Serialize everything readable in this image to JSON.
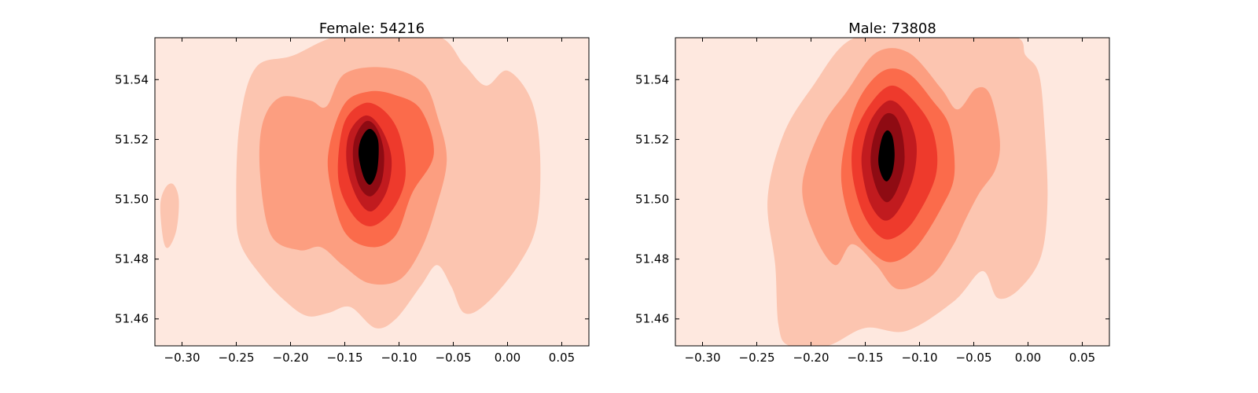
{
  "chart_data": [
    {
      "type": "contour",
      "title": "Female: 54216",
      "xlim": [
        -0.325,
        0.075
      ],
      "ylim": [
        51.451,
        51.554
      ],
      "xticks": [
        -0.3,
        -0.25,
        -0.2,
        -0.15,
        -0.1,
        -0.05,
        0.0,
        0.05
      ],
      "xtick_labels": [
        "−0.30",
        "−0.25",
        "−0.20",
        "−0.15",
        "−0.10",
        "−0.05",
        "0.00",
        "0.05"
      ],
      "yticks": [
        51.46,
        51.48,
        51.5,
        51.52,
        51.54
      ],
      "ytick_labels": [
        "51.46",
        "51.48",
        "51.50",
        "51.52",
        "51.54"
      ],
      "colors": [
        "#fee8df",
        "#fcc5b0",
        "#fc9e80",
        "#fb6b4b",
        "#ee3a2c",
        "#c11b1f",
        "#8e0b13"
      ],
      "grid": false,
      "peak": [
        -0.128,
        51.514
      ],
      "levels": [
        {
          "level": 1,
          "polygons": [
            [
              [
                -0.25,
                51.498
              ],
              [
                -0.246,
                51.485
              ],
              [
                -0.226,
                51.474
              ],
              [
                -0.205,
                51.466
              ],
              [
                -0.185,
                51.461
              ],
              [
                -0.165,
                51.462
              ],
              [
                -0.145,
                51.464
              ],
              [
                -0.122,
                51.457
              ],
              [
                -0.103,
                51.46
              ],
              [
                -0.08,
                51.471
              ],
              [
                -0.065,
                51.478
              ],
              [
                -0.052,
                51.471
              ],
              [
                -0.04,
                51.462
              ],
              [
                -0.02,
                51.465
              ],
              [
                0.01,
                51.478
              ],
              [
                0.027,
                51.492
              ],
              [
                0.03,
                51.515
              ],
              [
                0.022,
                51.533
              ],
              [
                0.0,
                51.543
              ],
              [
                -0.02,
                51.538
              ],
              [
                -0.04,
                51.545
              ],
              [
                -0.068,
                51.555
              ],
              [
                -0.15,
                51.555
              ],
              [
                -0.198,
                51.548
              ],
              [
                -0.232,
                51.544
              ],
              [
                -0.247,
                51.525
              ]
            ],
            [
              [
                -0.32,
                51.498
              ],
              [
                -0.317,
                51.486
              ],
              [
                -0.312,
                51.484
              ],
              [
                -0.305,
                51.49
              ],
              [
                -0.303,
                51.5
              ],
              [
                -0.308,
                51.505
              ],
              [
                -0.315,
                51.504
              ]
            ]
          ]
        },
        {
          "level": 2,
          "polygons": [
            [
              [
                -0.228,
                51.508
              ],
              [
                -0.218,
                51.488
              ],
              [
                -0.192,
                51.483
              ],
              [
                -0.172,
                51.484
              ],
              [
                -0.152,
                51.478
              ],
              [
                -0.128,
                51.472
              ],
              [
                -0.1,
                51.473
              ],
              [
                -0.08,
                51.483
              ],
              [
                -0.066,
                51.497
              ],
              [
                -0.056,
                51.513
              ],
              [
                -0.064,
                51.527
              ],
              [
                -0.078,
                51.539
              ],
              [
                -0.112,
                51.544
              ],
              [
                -0.15,
                51.542
              ],
              [
                -0.167,
                51.531
              ],
              [
                -0.182,
                51.533
              ],
              [
                -0.21,
                51.534
              ],
              [
                -0.226,
                51.525
              ]
            ]
          ]
        },
        {
          "level": 3,
          "polygons": [
            [
              [
                -0.164,
                51.506
              ],
              [
                -0.15,
                51.489
              ],
              [
                -0.125,
                51.484
              ],
              [
                -0.103,
                51.488
              ],
              [
                -0.088,
                51.502
              ],
              [
                -0.068,
                51.515
              ],
              [
                -0.08,
                51.53
              ],
              [
                -0.105,
                51.535
              ],
              [
                -0.128,
                51.536
              ],
              [
                -0.15,
                51.532
              ],
              [
                -0.164,
                51.518
              ]
            ]
          ]
        },
        {
          "level": 4,
          "polygons": [
            [
              [
                -0.156,
                51.507
              ],
              [
                -0.143,
                51.495
              ],
              [
                -0.125,
                51.491
              ],
              [
                -0.105,
                51.497
              ],
              [
                -0.094,
                51.508
              ],
              [
                -0.1,
                51.522
              ],
              [
                -0.115,
                51.53
              ],
              [
                -0.133,
                51.532
              ],
              [
                -0.151,
                51.525
              ]
            ]
          ]
        },
        {
          "level": 5,
          "polygons": [
            [
              [
                -0.148,
                51.511
              ],
              [
                -0.138,
                51.5
              ],
              [
                -0.125,
                51.496
              ],
              [
                -0.111,
                51.503
              ],
              [
                -0.107,
                51.514
              ],
              [
                -0.117,
                51.524
              ],
              [
                -0.131,
                51.528
              ],
              [
                -0.146,
                51.522
              ]
            ]
          ]
        },
        {
          "level": 6,
          "polygons": [
            [
              [
                -0.142,
                51.512
              ],
              [
                -0.136,
                51.504
              ],
              [
                -0.126,
                51.501
              ],
              [
                -0.116,
                51.506
              ],
              [
                -0.114,
                51.516
              ],
              [
                -0.121,
                51.524
              ],
              [
                -0.131,
                51.526
              ],
              [
                -0.141,
                51.52
              ]
            ]
          ]
        },
        {
          "level": 7,
          "polygons": [
            [
              [
                -0.137,
                51.514
              ],
              [
                -0.132,
                51.507
              ],
              [
                -0.126,
                51.505
              ],
              [
                -0.12,
                51.51
              ],
              [
                -0.119,
                51.519
              ],
              [
                -0.124,
                51.523
              ],
              [
                -0.13,
                51.523
              ],
              [
                -0.136,
                51.519
              ]
            ]
          ]
        }
      ]
    },
    {
      "type": "contour",
      "title": "Male: 73808",
      "xlim": [
        -0.325,
        0.075
      ],
      "ylim": [
        51.451,
        51.554
      ],
      "xticks": [
        -0.3,
        -0.25,
        -0.2,
        -0.15,
        -0.1,
        -0.05,
        0.0,
        0.05
      ],
      "xtick_labels": [
        "−0.30",
        "−0.25",
        "−0.20",
        "−0.15",
        "−0.10",
        "−0.05",
        "0.00",
        "0.05"
      ],
      "yticks": [
        51.46,
        51.48,
        51.5,
        51.52,
        51.54
      ],
      "ytick_labels": [
        "51.46",
        "51.48",
        "51.50",
        "51.52",
        "51.54"
      ],
      "colors": [
        "#fee8df",
        "#fcc5b0",
        "#fc9e80",
        "#fb6b4b",
        "#ee3a2c",
        "#c11b1f",
        "#8e0b13"
      ],
      "grid": false,
      "peak": [
        -0.13,
        51.514
      ],
      "levels": [
        {
          "level": 1,
          "polygons": [
            [
              [
                -0.24,
                51.5
              ],
              [
                -0.233,
                51.478
              ],
              [
                -0.23,
                51.458
              ],
              [
                -0.22,
                51.451
              ],
              [
                -0.185,
                51.451
              ],
              [
                -0.15,
                51.457
              ],
              [
                -0.112,
                51.456
              ],
              [
                -0.068,
                51.466
              ],
              [
                -0.042,
                51.476
              ],
              [
                -0.028,
                51.467
              ],
              [
                -0.008,
                51.47
              ],
              [
                0.012,
                51.481
              ],
              [
                0.018,
                51.5
              ],
              [
                0.015,
                51.525
              ],
              [
                0.01,
                51.542
              ],
              [
                -0.002,
                51.548
              ],
              [
                -0.018,
                51.555
              ],
              [
                -0.12,
                51.555
              ],
              [
                -0.165,
                51.553
              ],
              [
                -0.198,
                51.538
              ],
              [
                -0.225,
                51.522
              ]
            ]
          ]
        },
        {
          "level": 2,
          "polygons": [
            [
              [
                -0.208,
                51.505
              ],
              [
                -0.198,
                51.489
              ],
              [
                -0.178,
                51.478
              ],
              [
                -0.162,
                51.485
              ],
              [
                -0.14,
                51.478
              ],
              [
                -0.12,
                51.47
              ],
              [
                -0.09,
                51.474
              ],
              [
                -0.07,
                51.484
              ],
              [
                -0.058,
                51.493
              ],
              [
                -0.045,
                51.502
              ],
              [
                -0.03,
                51.51
              ],
              [
                -0.026,
                51.52
              ],
              [
                -0.035,
                51.535
              ],
              [
                -0.048,
                51.537
              ],
              [
                -0.065,
                51.53
              ],
              [
                -0.08,
                51.537
              ],
              [
                -0.11,
                51.549
              ],
              [
                -0.14,
                51.549
              ],
              [
                -0.167,
                51.536
              ],
              [
                -0.19,
                51.524
              ]
            ]
          ]
        },
        {
          "level": 3,
          "polygons": [
            [
              [
                -0.172,
                51.506
              ],
              [
                -0.162,
                51.491
              ],
              [
                -0.143,
                51.482
              ],
              [
                -0.125,
                51.479
              ],
              [
                -0.103,
                51.484
              ],
              [
                -0.08,
                51.497
              ],
              [
                -0.068,
                51.508
              ],
              [
                -0.072,
                51.524
              ],
              [
                -0.088,
                51.533
              ],
              [
                -0.11,
                51.542
              ],
              [
                -0.133,
                51.543
              ],
              [
                -0.155,
                51.534
              ],
              [
                -0.168,
                51.52
              ]
            ]
          ]
        },
        {
          "level": 4,
          "polygons": [
            [
              [
                -0.162,
                51.509
              ],
              [
                -0.153,
                51.496
              ],
              [
                -0.138,
                51.488
              ],
              [
                -0.124,
                51.487
              ],
              [
                -0.105,
                51.493
              ],
              [
                -0.085,
                51.508
              ],
              [
                -0.087,
                51.522
              ],
              [
                -0.103,
                51.532
              ],
              [
                -0.125,
                51.538
              ],
              [
                -0.145,
                51.532
              ],
              [
                -0.16,
                51.521
              ]
            ]
          ]
        },
        {
          "level": 5,
          "polygons": [
            [
              [
                -0.153,
                51.51
              ],
              [
                -0.146,
                51.499
              ],
              [
                -0.133,
                51.493
              ],
              [
                -0.12,
                51.496
              ],
              [
                -0.106,
                51.507
              ],
              [
                -0.103,
                51.519
              ],
              [
                -0.113,
                51.529
              ],
              [
                -0.128,
                51.533
              ],
              [
                -0.144,
                51.527
              ],
              [
                -0.152,
                51.518
              ]
            ]
          ]
        },
        {
          "level": 6,
          "polygons": [
            [
              [
                -0.145,
                51.512
              ],
              [
                -0.139,
                51.503
              ],
              [
                -0.13,
                51.499
              ],
              [
                -0.121,
                51.503
              ],
              [
                -0.114,
                51.512
              ],
              [
                -0.116,
                51.522
              ],
              [
                -0.123,
                51.528
              ],
              [
                -0.133,
                51.528
              ],
              [
                -0.142,
                51.521
              ]
            ]
          ]
        },
        {
          "level": 7,
          "polygons": [
            [
              [
                -0.138,
                51.513
              ],
              [
                -0.135,
                51.508
              ],
              [
                -0.13,
                51.506
              ],
              [
                -0.125,
                51.509
              ],
              [
                -0.123,
                51.515
              ],
              [
                -0.125,
                51.521
              ],
              [
                -0.13,
                51.523
              ],
              [
                -0.135,
                51.52
              ]
            ]
          ]
        }
      ]
    }
  ]
}
